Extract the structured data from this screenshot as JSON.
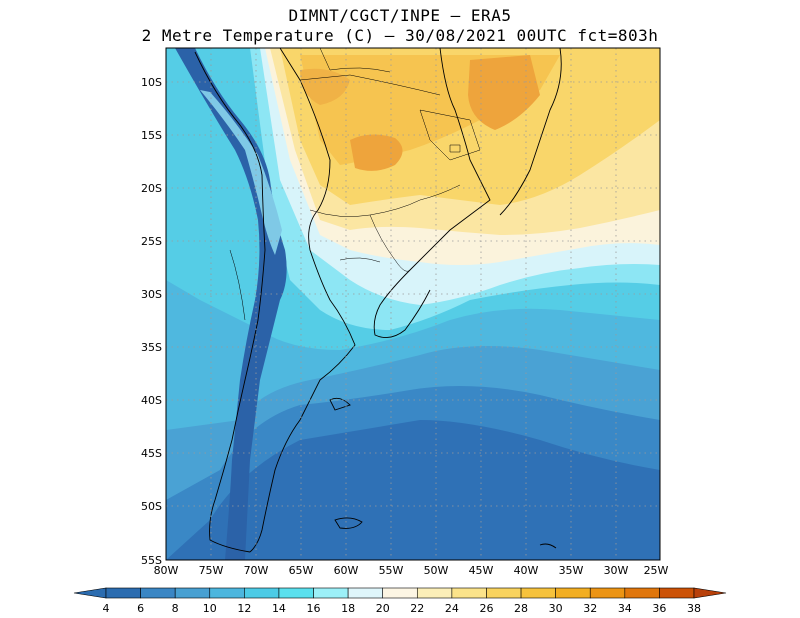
{
  "title": {
    "line1": "DIMNT/CGCT/INPE –  ERA5",
    "line2": "2 Metre Temperature (C) –  30/08/2021 00UTC fct=803h"
  },
  "map": {
    "lon_range": [
      -80,
      -25
    ],
    "lat_range": [
      -55,
      -7.5
    ],
    "lat_ticks": [
      "10S",
      "15S",
      "20S",
      "25S",
      "30S",
      "35S",
      "40S",
      "45S",
      "50S",
      "55S"
    ],
    "lon_ticks": [
      "80W",
      "75W",
      "70W",
      "65W",
      "60W",
      "55W",
      "50W",
      "45W",
      "40W",
      "35W",
      "30W",
      "25W"
    ]
  },
  "colorbar": {
    "labels": [
      "4",
      "6",
      "8",
      "10",
      "12",
      "14",
      "16",
      "18",
      "20",
      "22",
      "24",
      "26",
      "28",
      "30",
      "32",
      "34",
      "36",
      "38"
    ],
    "colors": [
      "#2b6cb0",
      "#3a86c4",
      "#48a0d2",
      "#4cb6de",
      "#4ccbe6",
      "#5ae0ee",
      "#9cf0f8",
      "#dff6fb",
      "#fdf6e4",
      "#fcefb8",
      "#fbe38a",
      "#f9d35e",
      "#f6c23c",
      "#f2ae22",
      "#ec9414",
      "#e0760c",
      "#cc5206"
    ]
  },
  "colors": {
    "ocean_deep": "#2f71b6",
    "ocean_mid": "#4a9fd2",
    "ocean_light": "#53c3e2",
    "cyan_light": "#a8ecf6",
    "pale": "#e4f8fb",
    "cream": "#fcf4df",
    "yellow": "#fbe49a",
    "gold": "#f6c94e",
    "orange": "#f0a43a"
  }
}
